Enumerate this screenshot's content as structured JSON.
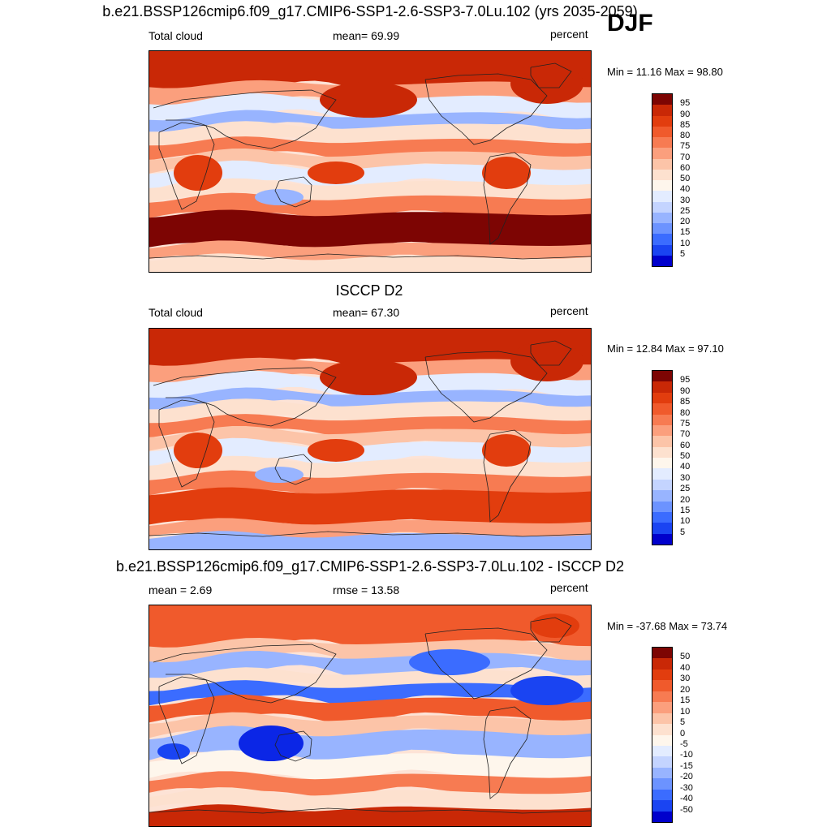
{
  "season": "DJF",
  "colors": {
    "abs_scale": [
      "#000088",
      "#0000cc",
      "#0b26e6",
      "#1a44f2",
      "#3b6cff",
      "#6c93ff",
      "#98b4ff",
      "#c4d4ff",
      "#e3ecff",
      "#fef6ec",
      "#fde1cf",
      "#fcc4a8",
      "#fb9f7d",
      "#f77b52",
      "#f05a2c",
      "#e23d0e",
      "#c92806",
      "#a31606",
      "#7d0503"
    ],
    "diff_scale": [
      "#000088",
      "#0000cc",
      "#0b26e6",
      "#1a44f2",
      "#3b6cff",
      "#6c93ff",
      "#98b4ff",
      "#c4d4ff",
      "#e3ecff",
      "#fef6ec",
      "#fde1cf",
      "#fcc4a8",
      "#fb9f7d",
      "#f77b52",
      "#f05a2c",
      "#e23d0e",
      "#c92806",
      "#a31606",
      "#7d0503"
    ],
    "coastline": "#222222"
  },
  "chart_data": [
    {
      "type": "heatmap",
      "title": "b.e21.BSSP126cmip6.f09_g17.CMIP6-SSP1-2.6-SSP3-7.0Lu.102 (yrs 2035-2059)",
      "left_label": "Total cloud",
      "center_label": "mean=  69.99",
      "right_label": "percent",
      "stats": "Min =  11.16 Max =  98.80",
      "mean": 69.99,
      "min": 11.16,
      "max": 98.8,
      "levels": [
        "95",
        "90",
        "85",
        "80",
        "75",
        "70",
        "60",
        "50",
        "40",
        "30",
        "25",
        "20",
        "15",
        "10",
        "5"
      ]
    },
    {
      "type": "heatmap",
      "title": "ISCCP D2",
      "left_label": "Total cloud",
      "center_label": "mean=  67.30",
      "right_label": "percent",
      "stats": "Min =  12.84 Max =  97.10",
      "mean": 67.3,
      "min": 12.84,
      "max": 97.1,
      "levels": [
        "95",
        "90",
        "85",
        "80",
        "75",
        "70",
        "60",
        "50",
        "40",
        "30",
        "25",
        "20",
        "15",
        "10",
        "5"
      ]
    },
    {
      "type": "heatmap",
      "title": "b.e21.BSSP126cmip6.f09_g17.CMIP6-SSP1-2.6-SSP3-7.0Lu.102 - ISCCP D2",
      "left_label": "mean =   2.69",
      "center_label": "rmse =  13.58",
      "right_label": "percent",
      "stats": "Min = -37.68 Max =  73.74",
      "mean": 2.69,
      "rmse": 13.58,
      "min": -37.68,
      "max": 73.74,
      "levels": [
        "50",
        "40",
        "30",
        "20",
        "15",
        "10",
        "5",
        "0",
        "-5",
        "-10",
        "-15",
        "-20",
        "-30",
        "-40",
        "-50"
      ]
    }
  ]
}
